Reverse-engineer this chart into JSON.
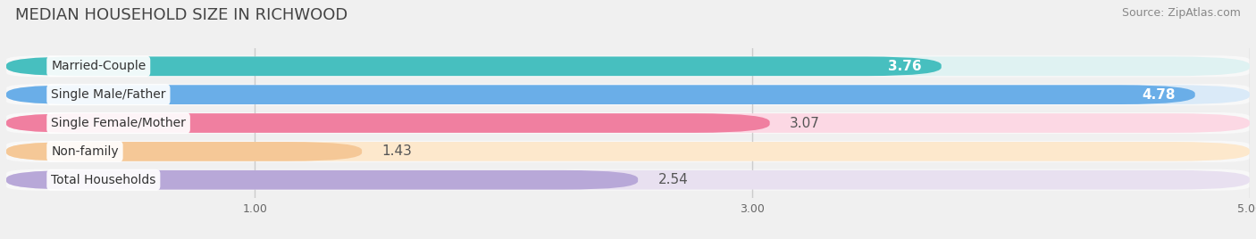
{
  "title": "MEDIAN HOUSEHOLD SIZE IN RICHWOOD",
  "source": "Source: ZipAtlas.com",
  "categories": [
    "Married-Couple",
    "Single Male/Father",
    "Single Female/Mother",
    "Non-family",
    "Total Households"
  ],
  "values": [
    3.76,
    4.78,
    3.07,
    1.43,
    2.54
  ],
  "bar_colors": [
    "#47bfbf",
    "#6aaee8",
    "#f07fa0",
    "#f5c897",
    "#b8a8d8"
  ],
  "bg_colors": [
    "#dff2f2",
    "#daeaf8",
    "#fcd8e4",
    "#fde8cc",
    "#e8e0f0"
  ],
  "label_inside": [
    true,
    true,
    false,
    false,
    false
  ],
  "xmin": 0.0,
  "xmax": 5.0,
  "xticks": [
    1.0,
    3.0,
    5.0
  ],
  "title_fontsize": 13,
  "source_fontsize": 9,
  "bar_label_fontsize": 11,
  "category_fontsize": 10,
  "background_color": "#f0f0f0",
  "row_bg_color": "#f8f8f8"
}
